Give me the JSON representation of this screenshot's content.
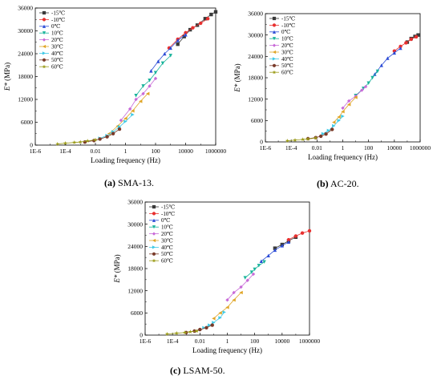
{
  "series_styles": [
    {
      "name": "-15℃",
      "color": "#3a3a3a",
      "marker": "square"
    },
    {
      "name": "-10℃",
      "color": "#e8302f",
      "marker": "circle"
    },
    {
      "name": "0℃",
      "color": "#2b4bd6",
      "marker": "triangle-up"
    },
    {
      "name": "10℃",
      "color": "#17b39a",
      "marker": "triangle-down"
    },
    {
      "name": "20℃",
      "color": "#c86ad8",
      "marker": "diamond"
    },
    {
      "name": "30℃",
      "color": "#e0a526",
      "marker": "triangle-left"
    },
    {
      "name": "40℃",
      "color": "#3ec9e6",
      "marker": "triangle-right"
    },
    {
      "name": "50℃",
      "color": "#7a3b2a",
      "marker": "circle"
    },
    {
      "name": "60℃",
      "color": "#9c9c1a",
      "marker": "star"
    }
  ],
  "chart_data": [
    {
      "type": "scatter",
      "panel": "a",
      "caption_letter": "(a)",
      "caption_text": " SMA-13.",
      "xlabel": "Loading frequency (Hz)",
      "ylabel": "E* (MPa)",
      "x_scale": "log",
      "xlim": [
        1e-06,
        1000000
      ],
      "ylim": [
        0,
        36000
      ],
      "x_ticks": [
        "1E-6",
        "1E-4",
        "0.01",
        "1",
        "100",
        "10000",
        "1000000"
      ],
      "y_ticks": [
        "0",
        "6000",
        "12000",
        "18000",
        "24000",
        "30000",
        "36000"
      ],
      "legend": "top-left",
      "grid": false,
      "series": [
        {
          "name": "-15℃",
          "points": [
            [
              3000,
              26500
            ],
            [
              8000,
              28500
            ],
            [
              20000,
              30300
            ],
            [
              60000,
              31500
            ],
            [
              200000,
              33200
            ],
            [
              500000,
              34300
            ],
            [
              1000000,
              35000
            ]
          ]
        },
        {
          "name": "-10℃",
          "points": [
            [
              800,
              25500
            ],
            [
              3000,
              27800
            ],
            [
              10000,
              29500
            ],
            [
              30000,
              30800
            ],
            [
              100000,
              32000
            ],
            [
              300000,
              33200
            ]
          ]
        },
        {
          "name": "0℃",
          "points": [
            [
              50,
              19500
            ],
            [
              150,
              22000
            ],
            [
              400,
              24000
            ],
            [
              1000,
              25500
            ],
            [
              3000,
              27500
            ],
            [
              10000,
              29000
            ]
          ]
        },
        {
          "name": "10℃",
          "points": [
            [
              5,
              13000
            ],
            [
              15,
              15500
            ],
            [
              40,
              17000
            ],
            [
              100,
              19000
            ],
            [
              300,
              21500
            ],
            [
              1000,
              23500
            ]
          ]
        },
        {
          "name": "20℃",
          "points": [
            [
              0.5,
              6500
            ],
            [
              2,
              9500
            ],
            [
              5,
              12000
            ],
            [
              15,
              13500
            ],
            [
              40,
              15500
            ],
            [
              100,
              17500
            ]
          ]
        },
        {
          "name": "30℃",
          "points": [
            [
              0.08,
              3000
            ],
            [
              0.3,
              5000
            ],
            [
              1,
              7000
            ],
            [
              3,
              9000
            ],
            [
              10,
              11500
            ],
            [
              30,
              13500
            ]
          ]
        },
        {
          "name": "40℃",
          "points": [
            [
              0.02,
              1800
            ],
            [
              0.06,
              2500
            ],
            [
              0.15,
              3500
            ],
            [
              0.4,
              4800
            ],
            [
              1,
              6200
            ],
            [
              3,
              8000
            ]
          ]
        },
        {
          "name": "50℃",
          "points": [
            [
              0.002,
              800
            ],
            [
              0.008,
              1200
            ],
            [
              0.02,
              1600
            ],
            [
              0.06,
              2200
            ],
            [
              0.15,
              3000
            ],
            [
              0.4,
              4200
            ]
          ]
        },
        {
          "name": "60℃",
          "points": [
            [
              3e-05,
              300
            ],
            [
              0.0001,
              500
            ],
            [
              0.0004,
              700
            ],
            [
              0.001,
              800
            ],
            [
              0.003,
              1100
            ],
            [
              0.01,
              1400
            ]
          ]
        }
      ]
    },
    {
      "type": "scatter",
      "panel": "b",
      "caption_letter": "(b)",
      "caption_text": " AC-20.",
      "xlabel": "Loading frequency (Hz)",
      "ylabel": "E* (MPa)",
      "x_scale": "log",
      "xlim": [
        1e-06,
        1000000
      ],
      "ylim": [
        0,
        36000
      ],
      "x_ticks": [
        "1E-6",
        "1E-4",
        "0.01",
        "1",
        "100",
        "10000",
        "1000000"
      ],
      "y_ticks": [
        "0",
        "6000",
        "12000",
        "18000",
        "24000",
        "30000",
        "36000"
      ],
      "legend": "top-left",
      "grid": false,
      "series": [
        {
          "name": "-15℃",
          "points": [
            [
              100000,
              28000
            ],
            [
              200000,
              29000
            ],
            [
              400000,
              29600
            ],
            [
              700000,
              30000
            ]
          ]
        },
        {
          "name": "-10℃",
          "points": [
            [
              10000,
              25500
            ],
            [
              30000,
              26800
            ],
            [
              80000,
              27800
            ],
            [
              200000,
              28800
            ],
            [
              500000,
              29500
            ]
          ]
        },
        {
          "name": "0℃",
          "points": [
            [
              300,
              19000
            ],
            [
              1000,
              21500
            ],
            [
              3000,
              23500
            ],
            [
              10000,
              25000
            ],
            [
              30000,
              26300
            ]
          ]
        },
        {
          "name": "10℃",
          "points": [
            [
              10,
              13000
            ],
            [
              40,
              15000
            ],
            [
              100,
              16500
            ],
            [
              200,
              18000
            ],
            [
              500,
              19800
            ]
          ]
        },
        {
          "name": "20℃",
          "points": [
            [
              1,
              9500
            ],
            [
              3,
              11500
            ],
            [
              10,
              12800
            ],
            [
              30,
              14500
            ],
            [
              60,
              15500
            ]
          ]
        },
        {
          "name": "30℃",
          "points": [
            [
              0.2,
              5500
            ],
            [
              0.5,
              7000
            ],
            [
              1,
              8500
            ],
            [
              3,
              10500
            ],
            [
              10,
              12500
            ]
          ]
        },
        {
          "name": "40℃",
          "points": [
            [
              0.03,
              2300
            ],
            [
              0.08,
              3200
            ],
            [
              0.2,
              4500
            ],
            [
              0.5,
              6000
            ],
            [
              1,
              7200
            ]
          ]
        },
        {
          "name": "50℃",
          "points": [
            [
              0.002,
              900
            ],
            [
              0.008,
              1200
            ],
            [
              0.02,
              1600
            ],
            [
              0.05,
              2200
            ],
            [
              0.15,
              3500
            ]
          ]
        },
        {
          "name": "60℃",
          "points": [
            [
              5e-05,
              300
            ],
            [
              0.0002,
              500
            ],
            [
              0.0008,
              700
            ],
            [
              0.002,
              800
            ],
            [
              0.008,
              1100
            ]
          ]
        }
      ]
    },
    {
      "type": "scatter",
      "panel": "c",
      "caption_letter": "(c)",
      "caption_text": " LSAM-50.",
      "xlabel": "Loading frequency (Hz)",
      "ylabel": "E* (MPa)",
      "x_scale": "log",
      "xlim": [
        1e-06,
        1000000
      ],
      "ylim": [
        0,
        36000
      ],
      "x_ticks": [
        "1E-6",
        "1E-4",
        "0.01",
        "1",
        "100",
        "10000",
        "1000000"
      ],
      "y_ticks": [
        "0",
        "6000",
        "12000",
        "18000",
        "24000",
        "30000",
        "36000"
      ],
      "legend": "top-left",
      "grid": false,
      "series": [
        {
          "name": "-15℃",
          "points": [
            [
              3000,
              23500
            ],
            [
              10000,
              24500
            ],
            [
              30000,
              25500
            ],
            [
              100000,
              26500
            ]
          ]
        },
        {
          "name": "-10℃",
          "points": [
            [
              30000,
              25800
            ],
            [
              100000,
              26800
            ],
            [
              300000,
              27600
            ],
            [
              1000000,
              28200
            ]
          ]
        },
        {
          "name": "0℃",
          "points": [
            [
              300,
              20000
            ],
            [
              1000,
              21500
            ],
            [
              3000,
              23000
            ],
            [
              10000,
              24200
            ],
            [
              30000,
              25200
            ]
          ]
        },
        {
          "name": "10℃",
          "points": [
            [
              20,
              15500
            ],
            [
              60,
              17000
            ],
            [
              100,
              17800
            ],
            [
              200,
              18800
            ],
            [
              500,
              19800
            ]
          ]
        },
        {
          "name": "20℃",
          "points": [
            [
              1,
              9500
            ],
            [
              3,
              11500
            ],
            [
              10,
              13000
            ],
            [
              30,
              14800
            ],
            [
              80,
              16500
            ]
          ]
        },
        {
          "name": "30℃",
          "points": [
            [
              0.1,
              4500
            ],
            [
              0.3,
              6000
            ],
            [
              1,
              7500
            ],
            [
              3,
              9500
            ],
            [
              10,
              11500
            ]
          ]
        },
        {
          "name": "40℃",
          "points": [
            [
              0.02,
              2000
            ],
            [
              0.05,
              2700
            ],
            [
              0.1,
              3400
            ],
            [
              0.3,
              4700
            ],
            [
              0.6,
              6200
            ]
          ]
        },
        {
          "name": "50℃",
          "points": [
            [
              0.001,
              700
            ],
            [
              0.004,
              1100
            ],
            [
              0.01,
              1500
            ],
            [
              0.03,
              2000
            ],
            [
              0.08,
              2700
            ]
          ]
        },
        {
          "name": "60℃",
          "points": [
            [
              4e-05,
              300
            ],
            [
              0.0002,
              500
            ],
            [
              0.0008,
              700
            ],
            [
              0.002,
              900
            ],
            [
              0.006,
              1100
            ]
          ]
        }
      ]
    }
  ]
}
